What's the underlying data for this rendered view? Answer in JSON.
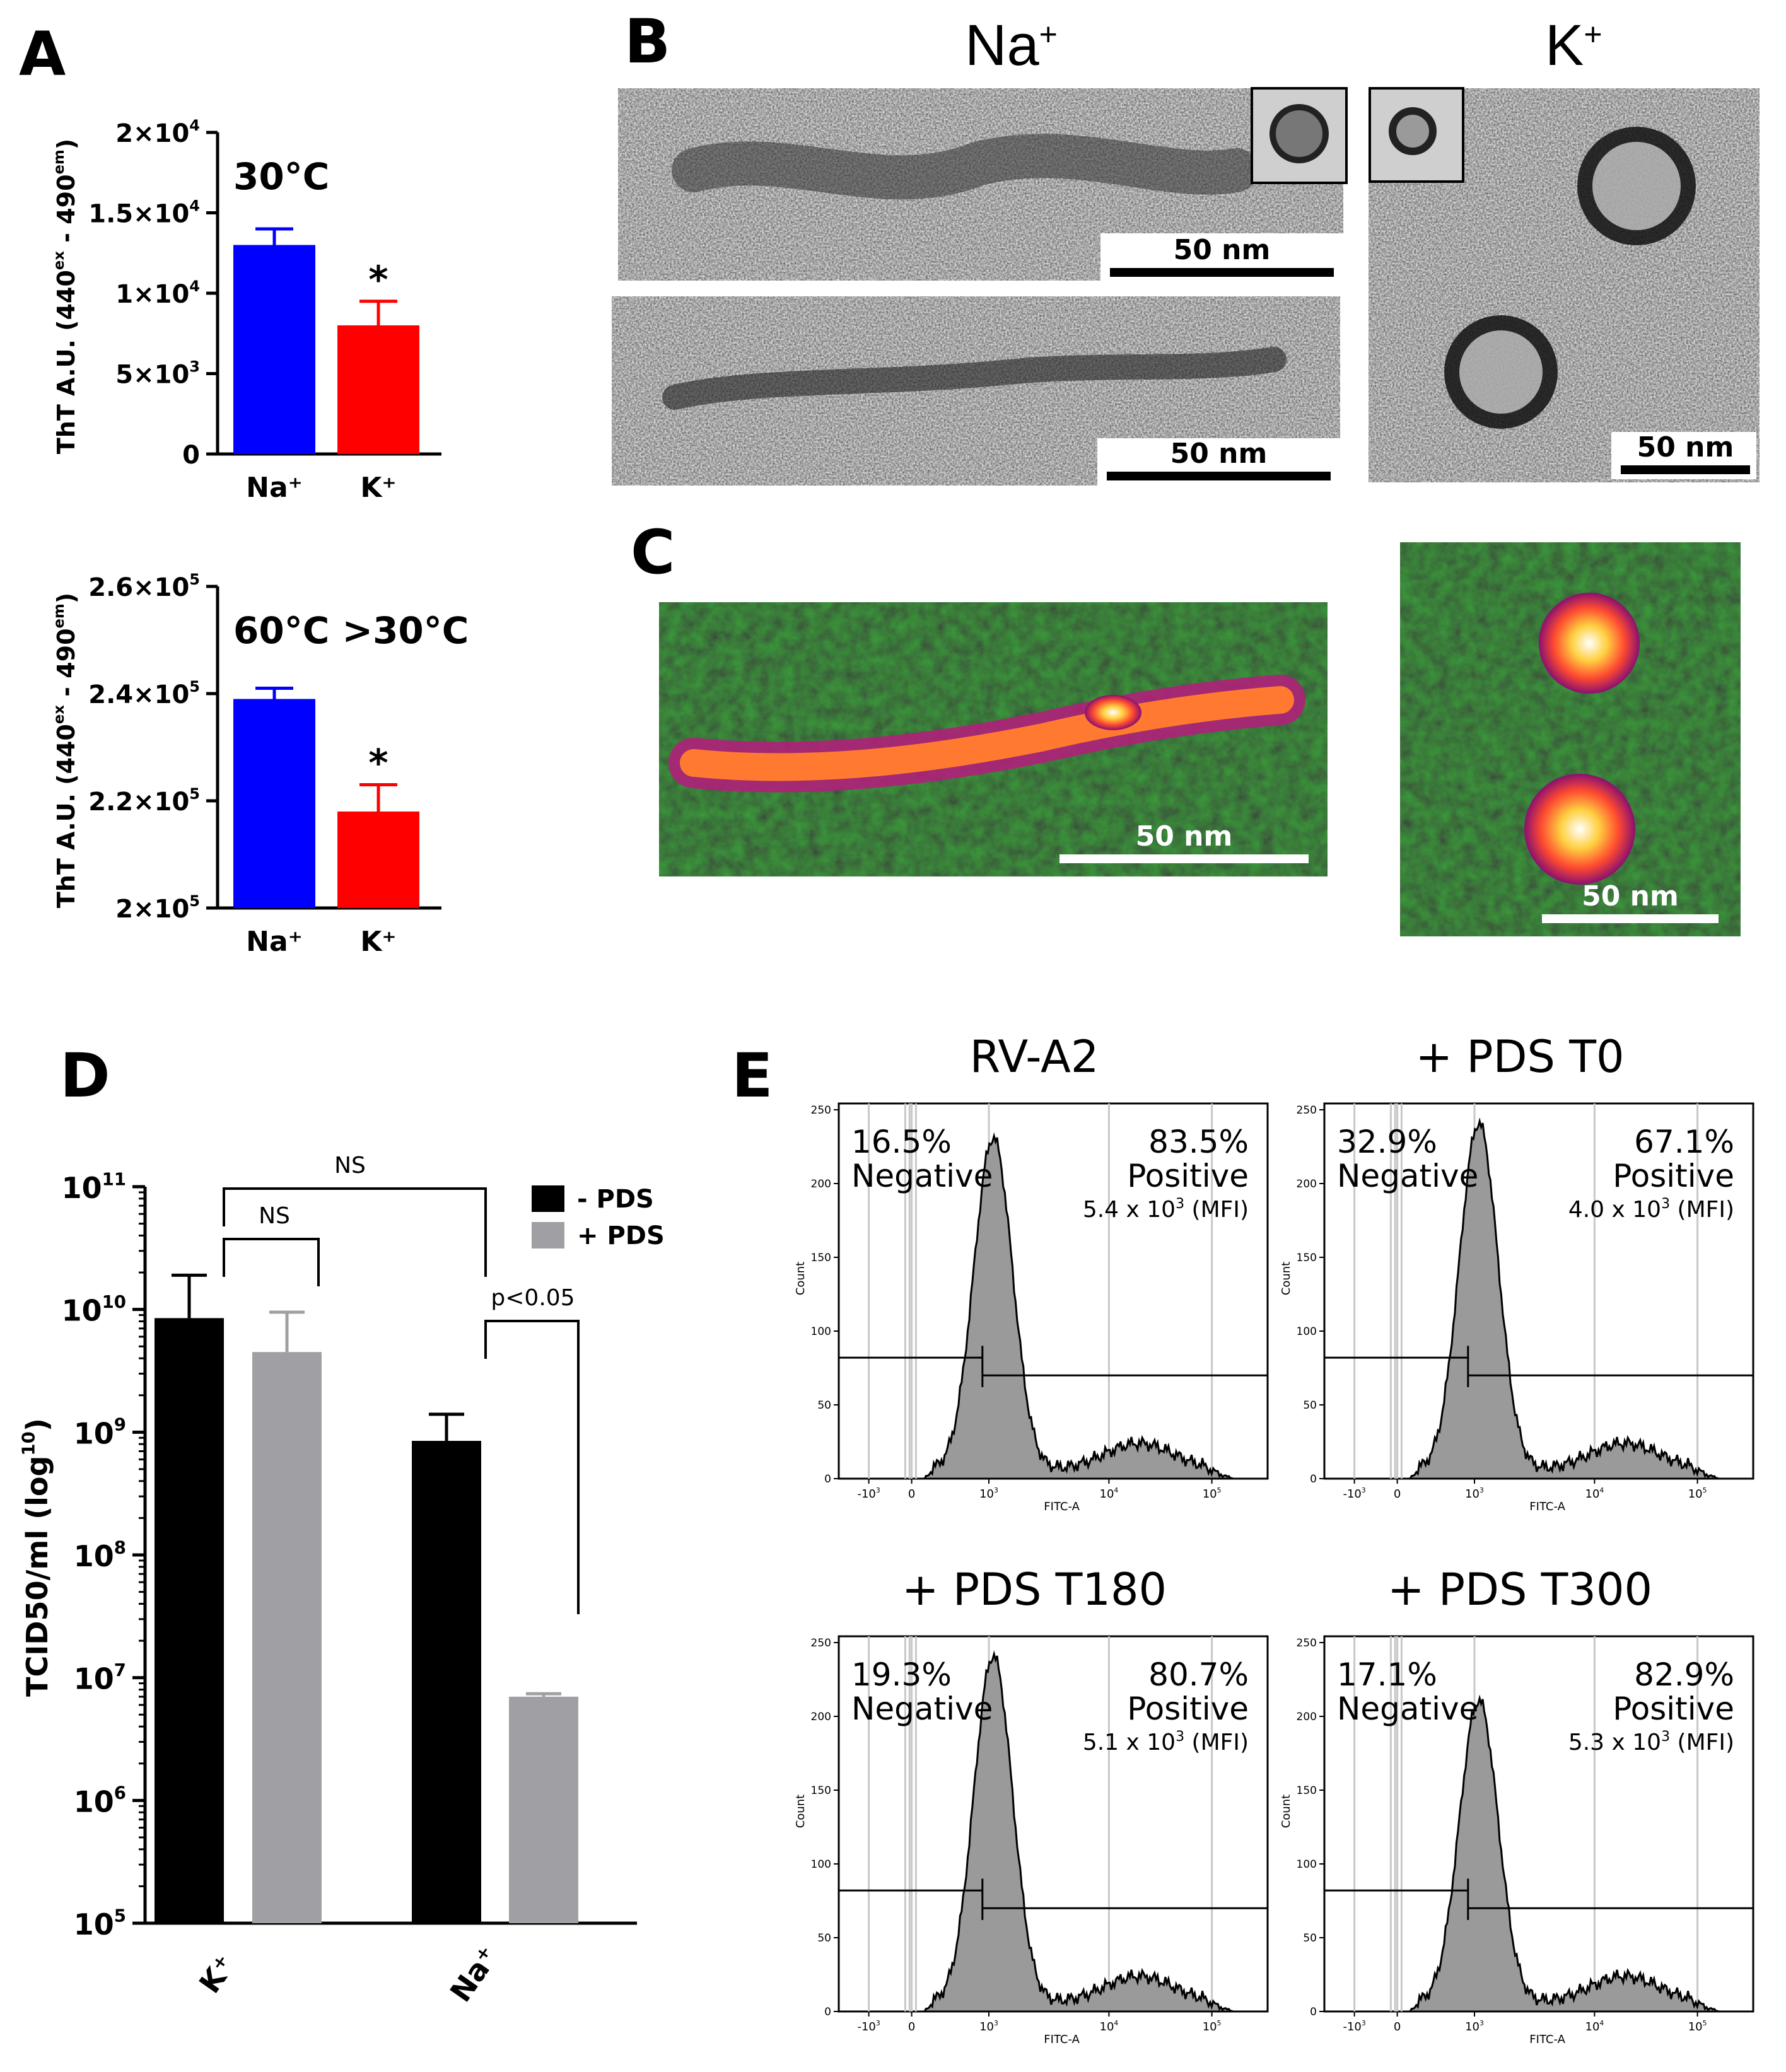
{
  "panels": {
    "a": "A",
    "b": "B",
    "c": "C",
    "d": "D",
    "e": "E"
  },
  "colors": {
    "na": "#0000ff",
    "k": "#ff0000",
    "black": "#000000",
    "gray": "#a0a0a4",
    "hist_fill": "#9a9a9a"
  },
  "chart_data": [
    {
      "id": "A1",
      "type": "bar",
      "title": "30°C",
      "ylabel_parts": [
        "ThT A.U. (440",
        "ex",
        " - 490",
        "em",
        ")"
      ],
      "categories": [
        "Na⁺",
        "K⁺"
      ],
      "values": [
        13000,
        8000
      ],
      "errors": [
        1000,
        1500
      ],
      "ylim": [
        0,
        20000
      ],
      "yticks": [
        0,
        5000,
        10000,
        15000,
        20000
      ],
      "ytick_labels": [
        [
          "0",
          ""
        ],
        [
          "5×10",
          "3"
        ],
        [
          "1×10",
          "4"
        ],
        [
          "1.5×10",
          "4"
        ],
        [
          "2×10",
          "4"
        ]
      ],
      "significance": [
        "",
        "*"
      ]
    },
    {
      "id": "A2",
      "type": "bar",
      "title": "60°C >30°C",
      "ylabel_parts": [
        "ThT A.U. (440",
        "ex",
        " - 490",
        "em",
        ")"
      ],
      "categories": [
        "Na⁺",
        "K⁺"
      ],
      "values": [
        239000,
        218000
      ],
      "errors": [
        2000,
        5000
      ],
      "ylim": [
        200000,
        260000
      ],
      "yticks": [
        200000,
        220000,
        240000,
        260000
      ],
      "ytick_labels": [
        [
          "2×10",
          "5"
        ],
        [
          "2.2×10",
          "5"
        ],
        [
          "2.4×10",
          "5"
        ],
        [
          "2.6×10",
          "5"
        ]
      ],
      "significance": [
        "",
        "*"
      ]
    },
    {
      "id": "D",
      "type": "bar",
      "scale": "log",
      "ylabel_parts": [
        "TCID50/ml (log",
        "10",
        ")"
      ],
      "categories": [
        "K⁺",
        "Na⁺"
      ],
      "legend": [
        "- PDS",
        "+ PDS"
      ],
      "series": [
        {
          "name": "- PDS",
          "values": [
            8500000000.0,
            850000000.0
          ],
          "errors_upper": [
            19000000000.0,
            1400000000.0
          ]
        },
        {
          "name": "+ PDS",
          "values": [
            4500000000.0,
            7000000.0
          ],
          "errors_upper": [
            9500000000.0,
            7400000.0
          ]
        }
      ],
      "ylim": [
        100000.0,
        100000000000.0
      ],
      "ytick_labels": [
        [
          "10",
          "5"
        ],
        [
          "10",
          "6"
        ],
        [
          "10",
          "7"
        ],
        [
          "10",
          "8"
        ],
        [
          "10",
          "9"
        ],
        [
          "10",
          "10"
        ],
        [
          "10",
          "11"
        ]
      ],
      "annotations": [
        "NS",
        "NS",
        "p<0.05"
      ]
    },
    {
      "id": "E",
      "type": "area",
      "xlabel": "FITC-A",
      "ylabel": "Count",
      "ylim": [
        0,
        250
      ],
      "yticks": [
        "0",
        "50",
        "100",
        "150",
        "200",
        "250"
      ],
      "xticks": [
        [
          "-10",
          "3"
        ],
        [
          "0",
          ""
        ],
        [
          "10",
          "3"
        ],
        [
          "10",
          "4"
        ],
        [
          "10",
          "5"
        ]
      ],
      "histograms": [
        {
          "title": "RV-A2",
          "neg_pct": "16.5%",
          "neg_label": "Negative",
          "pos_pct": "83.5%",
          "pos_label": "Positive",
          "mfi_base": "5.4 x 10",
          "mfi_exp": "3",
          "mfi_unit": " (MFI)",
          "peak": 225
        },
        {
          "title": "+ PDS T0",
          "neg_pct": "32.9%",
          "neg_label": "Negative",
          "pos_pct": "67.1%",
          "pos_label": "Positive",
          "mfi_base": "4.0 x 10",
          "mfi_exp": "3",
          "mfi_unit": " (MFI)",
          "peak": 235
        },
        {
          "title": "+ PDS T180",
          "neg_pct": "19.3%",
          "neg_label": "Negative",
          "pos_pct": "80.7%",
          "pos_label": "Positive",
          "mfi_base": "5.1 x 10",
          "mfi_exp": "3",
          "mfi_unit": " (MFI)",
          "peak": 235
        },
        {
          "title": "+ PDS T300",
          "neg_pct": "17.1%",
          "neg_label": "Negative",
          "pos_pct": "82.9%",
          "pos_label": "Positive",
          "mfi_base": "5.3 x 10",
          "mfi_exp": "3",
          "mfi_unit": " (MFI)",
          "peak": 205
        }
      ]
    }
  ],
  "micrographs": {
    "tem_na_label": "Na",
    "tem_na_sup": "+",
    "tem_k_label": "K",
    "tem_k_sup": "+",
    "scale_label": "50 nm"
  }
}
